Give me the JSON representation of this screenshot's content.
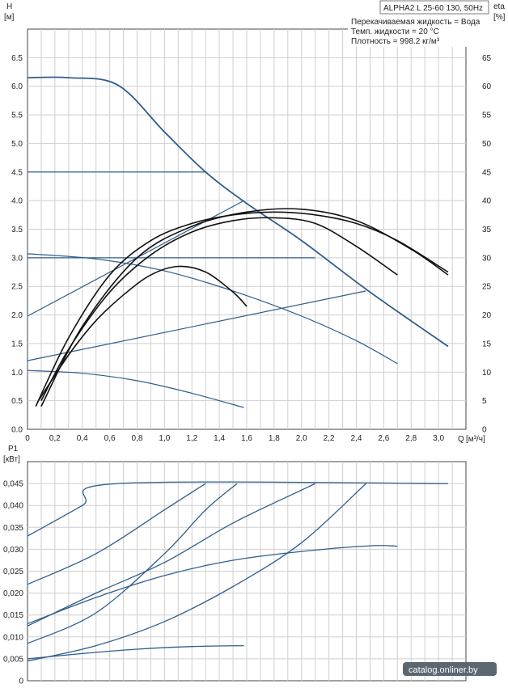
{
  "chart_data": [
    {
      "type": "line",
      "title": "ALPHA2 L 25-60 130, 50Hz",
      "notes": [
        "Перекачиваемая жидкость = Вода",
        "Темп. жидкости = 20 °C",
        "Плотность = 998.2 кг/м³"
      ],
      "ylabel": "H",
      "yunit": "[м]",
      "y2label": "eta",
      "y2unit": "[%]",
      "xlabel": "Q",
      "xunit": "[м³/ч]",
      "xlim": [
        0,
        3.2
      ],
      "ylim": [
        0,
        7
      ],
      "y2lim": [
        0,
        70
      ],
      "xticks": [
        "0",
        "0,2",
        "0,4",
        "0,6",
        "0,8",
        "1,0",
        "1,2",
        "1,4",
        "1,6",
        "1,8",
        "2,0",
        "2,2",
        "2,4",
        "2,6",
        "2,8",
        "3,0"
      ],
      "yticks": [
        "0.0",
        "0.5",
        "1.0",
        "1.5",
        "2.0",
        "2.5",
        "3.0",
        "3.5",
        "4.0",
        "4.5",
        "5.0",
        "5.5",
        "6.0",
        "6.5"
      ],
      "y2ticks": [
        "0",
        "5",
        "10",
        "15",
        "20",
        "25",
        "30",
        "35",
        "40",
        "45",
        "50",
        "55",
        "60",
        "65"
      ],
      "grid": true,
      "series": [
        {
          "kind": "head",
          "x": [
            0,
            0.3,
            0.66,
            1.0,
            1.3,
            1.6,
            2.0,
            2.5,
            3.07
          ],
          "y": [
            6.15,
            6.15,
            6.02,
            5.2,
            4.5,
            3.95,
            3.3,
            2.4,
            1.45
          ]
        },
        {
          "kind": "head",
          "x": [
            0,
            1.3
          ],
          "y": [
            4.5,
            4.5
          ]
        },
        {
          "kind": "head",
          "x": [
            0,
            2.1
          ],
          "y": [
            3.0,
            3.0
          ]
        },
        {
          "kind": "head",
          "x": [
            0,
            1.58
          ],
          "y": [
            1.98,
            4.0
          ]
        },
        {
          "kind": "head",
          "x": [
            0,
            2.47
          ],
          "y": [
            1.2,
            2.42
          ]
        },
        {
          "kind": "head",
          "x": [
            0,
            0.5,
            1.0,
            1.5,
            2.0,
            2.4,
            2.7
          ],
          "y": [
            3.07,
            2.98,
            2.77,
            2.42,
            1.98,
            1.55,
            1.15
          ]
        },
        {
          "kind": "head",
          "x": [
            0,
            0.4,
            0.8,
            1.2,
            1.58
          ],
          "y": [
            1.03,
            0.98,
            0.85,
            0.63,
            0.38
          ]
        },
        {
          "kind": "eta",
          "x": [
            0.08,
            0.3,
            0.5,
            0.7,
            0.9,
            1.1,
            1.3,
            1.5,
            1.6
          ],
          "y": [
            5,
            13,
            19,
            23.5,
            27,
            28.5,
            27.5,
            24,
            21.5
          ]
        },
        {
          "kind": "eta",
          "x": [
            0.1,
            0.3,
            0.6,
            0.9,
            1.2,
            1.5,
            1.8,
            2.1,
            2.4,
            2.7
          ],
          "y": [
            5,
            14,
            24,
            30.5,
            34.5,
            36.5,
            37,
            36,
            32,
            27
          ]
        },
        {
          "kind": "eta",
          "x": [
            0.06,
            0.3,
            0.6,
            0.9,
            1.2,
            1.5,
            1.8,
            2.1,
            2.4,
            2.7,
            3.07
          ],
          "y": [
            4,
            16,
            27,
            33,
            36,
            37.5,
            38,
            37.5,
            36,
            33,
            27.5
          ]
        },
        {
          "kind": "eta",
          "x": [
            0.1,
            0.4,
            0.8,
            1.2,
            1.6,
            2.0,
            2.4,
            2.8,
            3.07
          ],
          "y": [
            4,
            18,
            30,
            35.5,
            38,
            38.5,
            36.5,
            31.5,
            27
          ]
        }
      ]
    },
    {
      "type": "line",
      "ylabel": "P1",
      "yunit": "[кВт]",
      "xlim": [
        0,
        3.2
      ],
      "ylim": [
        0,
        0.05
      ],
      "yticks": [
        "0",
        "0,005",
        "0,010",
        "0,015",
        "0,020",
        "0,025",
        "0,030",
        "0,035",
        "0,040",
        "0,045"
      ],
      "grid": true,
      "series": [
        {
          "x": [
            0,
            0.4,
            0.66,
            3.07
          ],
          "y": [
            0.033,
            0.04,
            0.045,
            0.045
          ]
        },
        {
          "x": [
            0,
            0.5,
            1.0,
            1.3
          ],
          "y": [
            0.022,
            0.029,
            0.039,
            0.045
          ]
        },
        {
          "x": [
            0,
            0.5,
            1.0,
            1.3,
            1.53
          ],
          "y": [
            0.0085,
            0.0155,
            0.029,
            0.039,
            0.045
          ]
        },
        {
          "x": [
            0,
            0.5,
            1.0,
            1.5,
            2.0,
            2.1
          ],
          "y": [
            0.0125,
            0.02,
            0.027,
            0.036,
            0.0435,
            0.045
          ]
        },
        {
          "x": [
            0,
            0.5,
            1.0,
            1.5,
            2.0,
            2.47
          ],
          "y": [
            0.0045,
            0.008,
            0.0135,
            0.0215,
            0.0315,
            0.045
          ]
        },
        {
          "x": [
            0,
            0.5,
            1.0,
            1.5,
            2.0,
            2.5,
            2.7
          ],
          "y": [
            0.013,
            0.019,
            0.024,
            0.0275,
            0.0295,
            0.0308,
            0.0307
          ]
        },
        {
          "x": [
            0,
            0.4,
            0.8,
            1.2,
            1.58
          ],
          "y": [
            0.005,
            0.0062,
            0.0072,
            0.0078,
            0.008
          ]
        }
      ]
    }
  ],
  "watermark": "catalog.onliner.by",
  "colors": {
    "curve": "#2f5d8c",
    "eta": "#111111",
    "grid": "#cfcfcf",
    "axis": "#444444"
  }
}
